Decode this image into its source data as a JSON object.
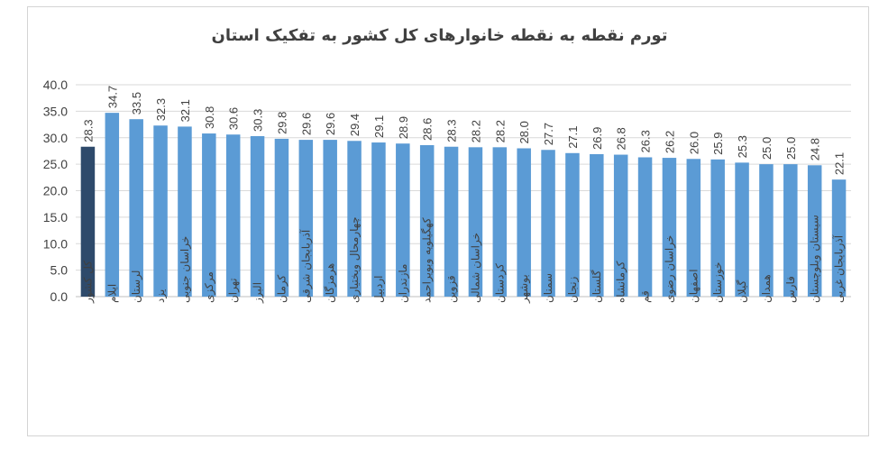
{
  "chart_data": {
    "type": "bar",
    "title": "تورم  نقطه به نقطه خانوارهای کل کشور به تفکیک استان",
    "xlabel": "",
    "ylabel": "",
    "ylim": [
      0,
      40
    ],
    "yticks": [
      "0.0",
      "5.0",
      "10.0",
      "15.0",
      "20.0",
      "25.0",
      "30.0",
      "35.0",
      "40.0"
    ],
    "grid": true,
    "legend": "none",
    "bar_color": "#5b9bd5",
    "highlight_color": "#2e4a6b",
    "highlight_category": "کل کشور",
    "categories": [
      "کل کشور",
      "ایلام",
      "لرستان",
      "یزد",
      "خراسان جنوبی",
      "مرکزی",
      "تهران",
      "البرز",
      "کرمان",
      "آذربایجان شرقی",
      "هرمزگان",
      "چهارمحال وبختیاری",
      "اردبیل",
      "مازندران",
      "کهگیلویه وبویراحمد",
      "قزوین",
      "خراسان شمالی",
      "کردستان",
      "بوشهر",
      "سمنان",
      "زنجان",
      "گلستان",
      "کرمانشاه",
      "قم",
      "خراسان رضوی",
      "اصفهان",
      "خوزستان",
      "گیلان",
      "همدان",
      "فارس",
      "سیستان وبلوچستان",
      "آذربایجان غربی"
    ],
    "values": [
      28.3,
      34.7,
      33.5,
      32.3,
      32.1,
      30.8,
      30.6,
      30.3,
      29.8,
      29.6,
      29.6,
      29.4,
      29.1,
      28.9,
      28.6,
      28.3,
      28.2,
      28.2,
      28.0,
      27.7,
      27.1,
      26.9,
      26.8,
      26.3,
      26.2,
      26.0,
      25.9,
      25.3,
      25.0,
      25.0,
      24.8,
      22.1
    ],
    "value_labels": [
      "28.3",
      "34.7",
      "33.5",
      "32.3",
      "32.1",
      "30.8",
      "30.6",
      "30.3",
      "29.8",
      "29.6",
      "29.6",
      "29.4",
      "29.1",
      "28.9",
      "28.6",
      "28.3",
      "28.2",
      "28.2",
      "28.0",
      "27.7",
      "27.1",
      "26.9",
      "26.8",
      "26.3",
      "26.2",
      "26.0",
      "25.9",
      "25.3",
      "25.0",
      "25.0",
      "24.8",
      "22.1"
    ]
  }
}
